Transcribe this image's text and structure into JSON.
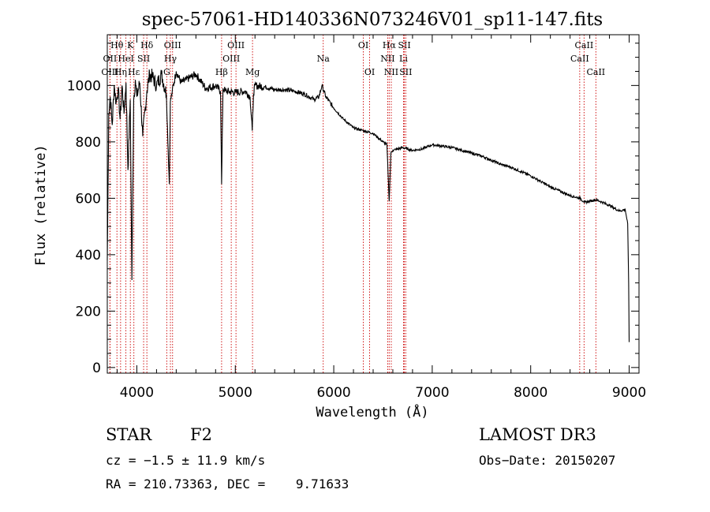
{
  "chart_data": {
    "type": "line",
    "title": "spec-57061-HD140336N073246V01_sp11-147.fits",
    "xlabel": "Wavelength (Å)",
    "ylabel": "Flux (relative)",
    "xlim": [
      3700,
      9100
    ],
    "ylim": [
      -20,
      1180
    ],
    "x_ticks": [
      4000,
      5000,
      6000,
      7000,
      8000,
      9000
    ],
    "y_ticks": [
      0,
      200,
      400,
      600,
      800,
      1000
    ],
    "series": [
      {
        "name": "flux",
        "x": [
          3700,
          3715,
          3730,
          3750,
          3770,
          3790,
          3810,
          3830,
          3850,
          3870,
          3890,
          3910,
          3933,
          3950,
          3968,
          3985,
          4000,
          4030,
          4060,
          4102,
          4130,
          4160,
          4200,
          4250,
          4300,
          4330,
          4340,
          4360,
          4400,
          4450,
          4500,
          4600,
          4700,
          4800,
          4850,
          4861,
          4875,
          4900,
          5000,
          5100,
          5150,
          5172,
          5185,
          5200,
          5300,
          5400,
          5500,
          5600,
          5700,
          5800,
          5850,
          5880,
          5920,
          6000,
          6100,
          6200,
          6300,
          6400,
          6500,
          6540,
          6563,
          6580,
          6600,
          6700,
          6800,
          6900,
          7000,
          7100,
          7200,
          7300,
          7400,
          7500,
          7600,
          7700,
          7800,
          7900,
          8000,
          8100,
          8200,
          8300,
          8400,
          8500,
          8550,
          8600,
          8662,
          8700,
          8800,
          8900,
          8960,
          8985,
          8995,
          9000
        ],
        "y": [
          380,
          900,
          960,
          860,
          1000,
          940,
          990,
          880,
          1000,
          900,
          1010,
          700,
          950,
          310,
          950,
          1020,
          960,
          1010,
          820,
          980,
          1040,
          1030,
          1000,
          1040,
          970,
          650,
          940,
          980,
          1050,
          1010,
          1020,
          1040,
          990,
          1000,
          980,
          650,
          990,
          980,
          975,
          980,
          960,
          840,
          970,
          1000,
          995,
          985,
          985,
          980,
          970,
          950,
          960,
          1000,
          960,
          920,
          880,
          850,
          840,
          830,
          800,
          790,
          590,
          760,
          770,
          780,
          770,
          775,
          790,
          785,
          780,
          770,
          760,
          750,
          735,
          720,
          710,
          695,
          680,
          660,
          640,
          625,
          610,
          600,
          585,
          590,
          595,
          590,
          575,
          555,
          560,
          510,
          300,
          90
        ]
      }
    ],
    "line_markers": [
      {
        "label": "Hθ",
        "x": 3798,
        "row": 0
      },
      {
        "label": "OII",
        "x": 3727,
        "row": 1
      },
      {
        "label": "OIII",
        "x": 3727,
        "row": 2
      },
      {
        "label": "K",
        "x": 3934,
        "row": 0
      },
      {
        "label": "HeI",
        "x": 3889,
        "row": 1
      },
      {
        "label": "Hη",
        "x": 3835,
        "row": 2
      },
      {
        "label": "SII",
        "x": 4069,
        "row": 1
      },
      {
        "label": "Hε",
        "x": 3970,
        "row": 2
      },
      {
        "label": "Hδ",
        "x": 4102,
        "row": 0
      },
      {
        "label": "OIII",
        "x": 4363,
        "row": 0
      },
      {
        "label": "Hγ",
        "x": 4341,
        "row": 1
      },
      {
        "label": "G",
        "x": 4304,
        "row": 2
      },
      {
        "label": "Hβ",
        "x": 4861,
        "row": 2
      },
      {
        "label": "OIII",
        "x": 5007,
        "row": 0
      },
      {
        "label": "OIII",
        "x": 4959,
        "row": 1
      },
      {
        "label": "Mg",
        "x": 5175,
        "row": 2
      },
      {
        "label": "Na",
        "x": 5893,
        "row": 1
      },
      {
        "label": "OI",
        "x": 6300,
        "row": 0
      },
      {
        "label": "OI",
        "x": 6364,
        "row": 2
      },
      {
        "label": "Hα",
        "x": 6563,
        "row": 0
      },
      {
        "label": "SII",
        "x": 6717,
        "row": 0
      },
      {
        "label": "NII",
        "x": 6548,
        "row": 1
      },
      {
        "label": "Li",
        "x": 6708,
        "row": 1
      },
      {
        "label": "NII",
        "x": 6584,
        "row": 2
      },
      {
        "label": "SII",
        "x": 6731,
        "row": 2
      },
      {
        "label": "CaII",
        "x": 8542,
        "row": 0
      },
      {
        "label": "CaII",
        "x": 8498,
        "row": 1
      },
      {
        "label": "CaII",
        "x": 8662,
        "row": 2
      }
    ]
  },
  "info": {
    "object_class": "STAR",
    "subclass": "F2",
    "survey": "LAMOST DR3",
    "cz": "cz = −1.5 ± 11.9 km/s",
    "obs_date": "Obs−Date: 20150207",
    "radec": "RA = 210.73363, DEC =    9.71633"
  },
  "colors": {
    "marker": "#cc0000",
    "spectrum": "#000000"
  }
}
